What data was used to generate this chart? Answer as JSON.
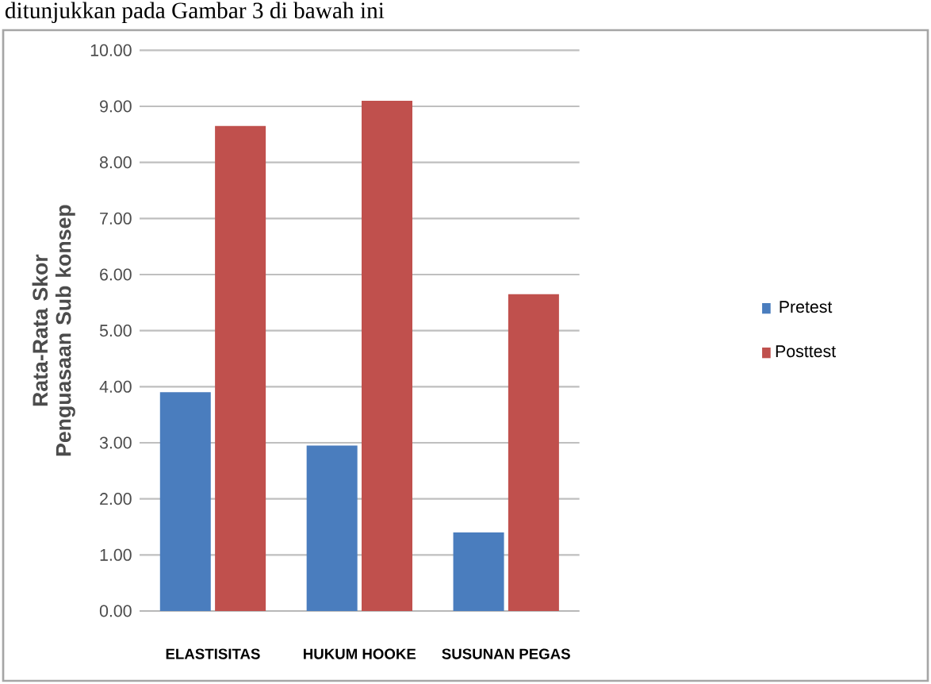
{
  "chart_data": {
    "type": "bar",
    "ylabel": "Rata-Rata Skor Penguasaan Sub konsep",
    "categories": [
      "ELASTISITAS",
      "HUKUM HOOKE",
      "SUSUNAN PEGAS"
    ],
    "series": [
      {
        "name": "Pretest",
        "color": "#4a7dbe",
        "values": [
          3.9,
          2.95,
          1.4
        ]
      },
      {
        "name": "Posttest",
        "color": "#c0504d",
        "values": [
          8.65,
          9.1,
          5.65
        ]
      }
    ],
    "ylim": [
      0,
      10
    ],
    "yticks": [
      {
        "value": 0,
        "label": "0.00"
      },
      {
        "value": 1,
        "label": "1.00"
      },
      {
        "value": 2,
        "label": "2.00"
      },
      {
        "value": 3,
        "label": "3.00"
      },
      {
        "value": 4,
        "label": "4.00"
      },
      {
        "value": 5,
        "label": "5.00"
      },
      {
        "value": 6,
        "label": "6.00"
      },
      {
        "value": 7,
        "label": "7.00"
      },
      {
        "value": 8,
        "label": "8.00"
      },
      {
        "value": 9,
        "label": "9.00"
      },
      {
        "value": 10,
        "label": "10.00"
      }
    ],
    "grid": "y",
    "legend": "right",
    "annotations": [
      "ditunjukkan pada Gambar 3 di bawah ini"
    ]
  }
}
